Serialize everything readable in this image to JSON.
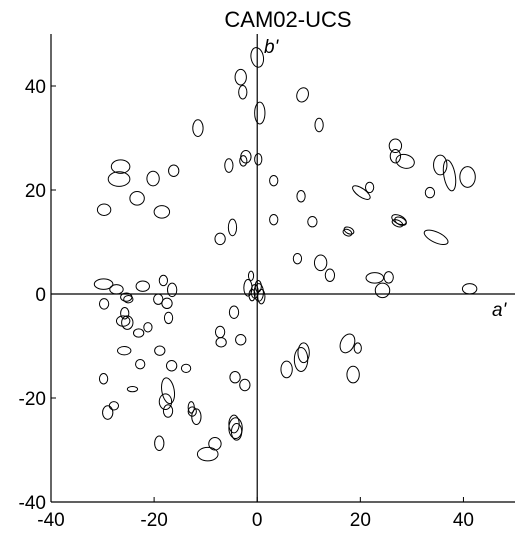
{
  "chart_data": {
    "type": "scatter",
    "title": "CAM02-UCS",
    "xlabel": "a'",
    "ylabel": "b'",
    "xlim": [
      -40,
      50
    ],
    "ylim": [
      -40,
      50
    ],
    "x_ticks": [
      -40,
      -20,
      0,
      20,
      40
    ],
    "y_ticks": [
      -40,
      -20,
      0,
      20,
      40
    ],
    "x_tick_labels": [
      "-40",
      "-20",
      "0",
      "20",
      "40"
    ],
    "y_tick_labels": [
      "-40",
      "-20",
      "0",
      "20",
      "40"
    ],
    "grid": false,
    "marker": "ellipse-outline",
    "ellipses": [
      {
        "x": 0,
        "y": 45.5,
        "rx": 1.2,
        "ry": 1.9,
        "rot": 10
      },
      {
        "x": -3.2,
        "y": 41.7,
        "rx": 1.1,
        "ry": 1.5,
        "rot": 0
      },
      {
        "x": -2.8,
        "y": 38.8,
        "rx": 0.8,
        "ry": 1.3,
        "rot": 0
      },
      {
        "x": 0.5,
        "y": 34.8,
        "rx": 1.0,
        "ry": 2.1,
        "rot": 0
      },
      {
        "x": 8.8,
        "y": 38.3,
        "rx": 1.1,
        "ry": 1.4,
        "rot": -20
      },
      {
        "x": 12,
        "y": 32.5,
        "rx": 0.8,
        "ry": 1.3,
        "rot": 0
      },
      {
        "x": -11.5,
        "y": 31.9,
        "rx": 1.0,
        "ry": 1.6,
        "rot": 0
      },
      {
        "x": 0.2,
        "y": 25.9,
        "rx": 0.7,
        "ry": 1.1,
        "rot": 0
      },
      {
        "x": -2.2,
        "y": 26.4,
        "rx": 1.0,
        "ry": 1.2,
        "rot": 0
      },
      {
        "x": -2.7,
        "y": 25.6,
        "rx": 0.7,
        "ry": 1.0,
        "rot": 0
      },
      {
        "x": -5.5,
        "y": 24.7,
        "rx": 0.8,
        "ry": 1.3,
        "rot": 0
      },
      {
        "x": -26.5,
        "y": 24.5,
        "rx": 1.8,
        "ry": 1.3,
        "rot": 0
      },
      {
        "x": -26.8,
        "y": 22.1,
        "rx": 2.1,
        "ry": 1.4,
        "rot": 0
      },
      {
        "x": -20.2,
        "y": 22.2,
        "rx": 1.2,
        "ry": 1.4,
        "rot": 0
      },
      {
        "x": -16.2,
        "y": 23.7,
        "rx": 1.0,
        "ry": 1.1,
        "rot": 0
      },
      {
        "x": -23.3,
        "y": 18.4,
        "rx": 1.4,
        "ry": 1.3,
        "rot": 0
      },
      {
        "x": -29.7,
        "y": 16.2,
        "rx": 1.3,
        "ry": 1.1,
        "rot": 0
      },
      {
        "x": -18.5,
        "y": 15.8,
        "rx": 1.5,
        "ry": 1.2,
        "rot": 0
      },
      {
        "x": 3.2,
        "y": 21.8,
        "rx": 0.8,
        "ry": 1.0,
        "rot": 0
      },
      {
        "x": 8.5,
        "y": 18.8,
        "rx": 0.8,
        "ry": 1.1,
        "rot": 0
      },
      {
        "x": 3.2,
        "y": 14.3,
        "rx": 0.8,
        "ry": 1.0,
        "rot": 0
      },
      {
        "x": 10.7,
        "y": 13.9,
        "rx": 0.9,
        "ry": 1.0,
        "rot": 0
      },
      {
        "x": -4.8,
        "y": 12.8,
        "rx": 0.8,
        "ry": 1.6,
        "rot": 0
      },
      {
        "x": -7.2,
        "y": 10.6,
        "rx": 1.0,
        "ry": 1.1,
        "rot": 0
      },
      {
        "x": 26.8,
        "y": 28.5,
        "rx": 1.2,
        "ry": 1.3,
        "rot": 0
      },
      {
        "x": 26.8,
        "y": 26.5,
        "rx": 1.0,
        "ry": 1.3,
        "rot": 0
      },
      {
        "x": 28.7,
        "y": 25.5,
        "rx": 1.8,
        "ry": 1.3,
        "rot": -15
      },
      {
        "x": 35.5,
        "y": 24.8,
        "rx": 1.3,
        "ry": 1.9,
        "rot": 0
      },
      {
        "x": 37.3,
        "y": 22.8,
        "rx": 1.1,
        "ry": 3.0,
        "rot": 10
      },
      {
        "x": 40.8,
        "y": 22.5,
        "rx": 1.5,
        "ry": 2.0,
        "rot": 0
      },
      {
        "x": 33.5,
        "y": 19.5,
        "rx": 0.9,
        "ry": 1.0,
        "rot": 0
      },
      {
        "x": 21.8,
        "y": 20.5,
        "rx": 0.8,
        "ry": 1.0,
        "rot": 0
      },
      {
        "x": 20.2,
        "y": 19.5,
        "rx": 2.0,
        "ry": 0.8,
        "rot": -35
      },
      {
        "x": 27.5,
        "y": 14.3,
        "rx": 1.5,
        "ry": 0.8,
        "rot": -25
      },
      {
        "x": 27.8,
        "y": 14.0,
        "rx": 1.2,
        "ry": 0.7,
        "rot": -25
      },
      {
        "x": 27.2,
        "y": 13.6,
        "rx": 1.1,
        "ry": 0.6,
        "rot": -25
      },
      {
        "x": 17.8,
        "y": 12.2,
        "rx": 1.0,
        "ry": 0.6,
        "rot": -25
      },
      {
        "x": 17.5,
        "y": 11.8,
        "rx": 0.9,
        "ry": 0.6,
        "rot": -25
      },
      {
        "x": 34.7,
        "y": 10.9,
        "rx": 2.5,
        "ry": 1.0,
        "rot": -25
      },
      {
        "x": 7.8,
        "y": 6.8,
        "rx": 0.8,
        "ry": 1.0,
        "rot": 0
      },
      {
        "x": 12.3,
        "y": 6.0,
        "rx": 1.2,
        "ry": 1.5,
        "rot": 0
      },
      {
        "x": 14.1,
        "y": 3.6,
        "rx": 0.9,
        "ry": 1.2,
        "rot": 0
      },
      {
        "x": 22.8,
        "y": 3.1,
        "rx": 1.7,
        "ry": 1.0,
        "rot": 0
      },
      {
        "x": 25.5,
        "y": 3.2,
        "rx": 0.9,
        "ry": 1.1,
        "rot": 0
      },
      {
        "x": 24.3,
        "y": 0.7,
        "rx": 1.4,
        "ry": 1.4,
        "rot": 0
      },
      {
        "x": 41.2,
        "y": 1.0,
        "rx": 1.4,
        "ry": 1.0,
        "rot": 0
      },
      {
        "x": -1.2,
        "y": 3.5,
        "rx": 0.5,
        "ry": 0.9,
        "rot": 0
      },
      {
        "x": -1.8,
        "y": 1.2,
        "rx": 0.8,
        "ry": 1.6,
        "rot": 0
      },
      {
        "x": -0.5,
        "y": 0.5,
        "rx": 0.7,
        "ry": 1.3,
        "rot": 0
      },
      {
        "x": 0.3,
        "y": 0.3,
        "rx": 0.9,
        "ry": 1.7,
        "rot": 0
      },
      {
        "x": 0.8,
        "y": -0.5,
        "rx": 0.7,
        "ry": 1.4,
        "rot": 0
      },
      {
        "x": 0.2,
        "y": 1.5,
        "rx": 0.6,
        "ry": 1.1,
        "rot": 0
      },
      {
        "x": -1.0,
        "y": -0.2,
        "rx": 0.6,
        "ry": 1.1,
        "rot": 0
      },
      {
        "x": -29.8,
        "y": 1.9,
        "rx": 1.8,
        "ry": 1.0,
        "rot": 0
      },
      {
        "x": -27.3,
        "y": 0.9,
        "rx": 1.3,
        "ry": 0.9,
        "rot": 0
      },
      {
        "x": -29.7,
        "y": -1.9,
        "rx": 0.9,
        "ry": 1.0,
        "rot": 0
      },
      {
        "x": -22.2,
        "y": 1.5,
        "rx": 1.3,
        "ry": 1.0,
        "rot": 0
      },
      {
        "x": -18.2,
        "y": 2.6,
        "rx": 0.8,
        "ry": 1.0,
        "rot": 0
      },
      {
        "x": -16.5,
        "y": 0.8,
        "rx": 0.9,
        "ry": 1.3,
        "rot": 0
      },
      {
        "x": -25.4,
        "y": -0.6,
        "rx": 1.1,
        "ry": 0.8,
        "rot": 0
      },
      {
        "x": -25.0,
        "y": -1.0,
        "rx": 0.9,
        "ry": 0.7,
        "rot": 0
      },
      {
        "x": -25.7,
        "y": -3.7,
        "rx": 0.8,
        "ry": 1.1,
        "rot": 0
      },
      {
        "x": -26.0,
        "y": -5.2,
        "rx": 1.3,
        "ry": 1.0,
        "rot": 0
      },
      {
        "x": -25.2,
        "y": -5.5,
        "rx": 1.1,
        "ry": 1.3,
        "rot": 0
      },
      {
        "x": -19.2,
        "y": -1.0,
        "rx": 0.9,
        "ry": 1.0,
        "rot": 0
      },
      {
        "x": -17.5,
        "y": -1.8,
        "rx": 1.0,
        "ry": 1.0,
        "rot": 0
      },
      {
        "x": -17.2,
        "y": -4.6,
        "rx": 0.8,
        "ry": 1.1,
        "rot": 0
      },
      {
        "x": -23.0,
        "y": -7.5,
        "rx": 1.0,
        "ry": 0.8,
        "rot": 0
      },
      {
        "x": -21.2,
        "y": -6.4,
        "rx": 0.8,
        "ry": 0.9,
        "rot": 0
      },
      {
        "x": -25.8,
        "y": -10.9,
        "rx": 1.3,
        "ry": 0.8,
        "rot": 0
      },
      {
        "x": -18.9,
        "y": -10.9,
        "rx": 1.0,
        "ry": 0.9,
        "rot": 0
      },
      {
        "x": -4.5,
        "y": -3.5,
        "rx": 0.9,
        "ry": 1.2,
        "rot": 0
      },
      {
        "x": -7.2,
        "y": -7.3,
        "rx": 0.9,
        "ry": 1.1,
        "rot": 0
      },
      {
        "x": -7.0,
        "y": -9.3,
        "rx": 1.0,
        "ry": 0.9,
        "rot": 0
      },
      {
        "x": -3.2,
        "y": -8.8,
        "rx": 1.0,
        "ry": 1.0,
        "rot": 0
      },
      {
        "x": -22.7,
        "y": -13.5,
        "rx": 0.9,
        "ry": 0.9,
        "rot": 0
      },
      {
        "x": -16.6,
        "y": -13.8,
        "rx": 1.0,
        "ry": 1.0,
        "rot": 0
      },
      {
        "x": -13.8,
        "y": -14.3,
        "rx": 0.9,
        "ry": 0.8,
        "rot": 0
      },
      {
        "x": -29.8,
        "y": -16.3,
        "rx": 0.8,
        "ry": 1.0,
        "rot": 0
      },
      {
        "x": -24.2,
        "y": -18.3,
        "rx": 1.0,
        "ry": 0.5,
        "rot": 0
      },
      {
        "x": -17.3,
        "y": -18.6,
        "rx": 1.2,
        "ry": 2.5,
        "rot": 10
      },
      {
        "x": -17.8,
        "y": -20.7,
        "rx": 1.2,
        "ry": 1.5,
        "rot": 0
      },
      {
        "x": -17.3,
        "y": -22.5,
        "rx": 0.9,
        "ry": 1.2,
        "rot": 0
      },
      {
        "x": -29.0,
        "y": -22.8,
        "rx": 1.0,
        "ry": 1.3,
        "rot": 0
      },
      {
        "x": -27.8,
        "y": -21.5,
        "rx": 0.9,
        "ry": 0.8,
        "rot": 0
      },
      {
        "x": -12.8,
        "y": -21.8,
        "rx": 0.6,
        "ry": 1.1,
        "rot": 0
      },
      {
        "x": -12.6,
        "y": -22.6,
        "rx": 0.8,
        "ry": 0.9,
        "rot": 0
      },
      {
        "x": -11.8,
        "y": -23.6,
        "rx": 0.9,
        "ry": 1.5,
        "rot": 0
      },
      {
        "x": -4.3,
        "y": -16.0,
        "rx": 1.0,
        "ry": 1.1,
        "rot": 0
      },
      {
        "x": -2.4,
        "y": -17.5,
        "rx": 1.0,
        "ry": 1.1,
        "rot": 0
      },
      {
        "x": -4.5,
        "y": -25.0,
        "rx": 1.0,
        "ry": 1.7,
        "rot": 0
      },
      {
        "x": -4.2,
        "y": -25.8,
        "rx": 1.3,
        "ry": 2.0,
        "rot": 0
      },
      {
        "x": -4.0,
        "y": -26.5,
        "rx": 1.0,
        "ry": 1.6,
        "rot": 0
      },
      {
        "x": -8.2,
        "y": -28.8,
        "rx": 1.2,
        "ry": 1.2,
        "rot": 0
      },
      {
        "x": -19.0,
        "y": -28.7,
        "rx": 0.9,
        "ry": 1.4,
        "rot": 0
      },
      {
        "x": -9.6,
        "y": -30.8,
        "rx": 2.0,
        "ry": 1.3,
        "rot": 0
      },
      {
        "x": 5.7,
        "y": -14.5,
        "rx": 1.1,
        "ry": 1.6,
        "rot": 0
      },
      {
        "x": 8.5,
        "y": -12.6,
        "rx": 1.3,
        "ry": 2.3,
        "rot": 0
      },
      {
        "x": 9.0,
        "y": -11.3,
        "rx": 1.1,
        "ry": 1.9,
        "rot": 0
      },
      {
        "x": 17.5,
        "y": -9.5,
        "rx": 1.3,
        "ry": 1.9,
        "rot": -25
      },
      {
        "x": 19.5,
        "y": -10.4,
        "rx": 0.7,
        "ry": 1.0,
        "rot": 0
      },
      {
        "x": 18.6,
        "y": -15.5,
        "rx": 1.2,
        "ry": 1.6,
        "rot": 0
      }
    ]
  }
}
